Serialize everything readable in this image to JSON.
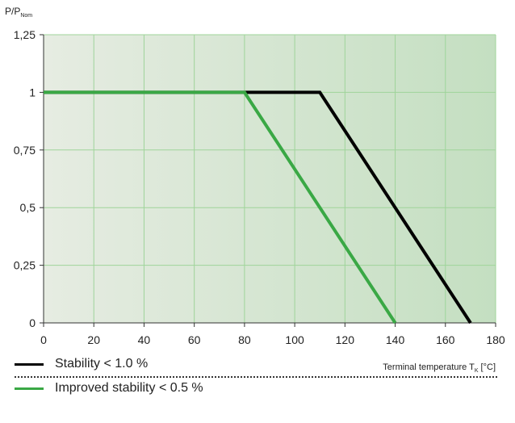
{
  "chart_data": {
    "type": "line",
    "title": "",
    "ylabel": {
      "main": "P/P",
      "sub": "Nom"
    },
    "xlabel": {
      "main": "Terminal temperature T",
      "sub": "K",
      "unit": " [°C]"
    },
    "xlim": [
      0,
      180
    ],
    "ylim": [
      0,
      1.25
    ],
    "x_ticks": [
      {
        "value": 0,
        "label": "0"
      },
      {
        "value": 20,
        "label": "20"
      },
      {
        "value": 40,
        "label": "40"
      },
      {
        "value": 60,
        "label": "60"
      },
      {
        "value": 80,
        "label": "80"
      },
      {
        "value": 100,
        "label": "100"
      },
      {
        "value": 120,
        "label": "120"
      },
      {
        "value": 140,
        "label": "140"
      },
      {
        "value": 160,
        "label": "160"
      },
      {
        "value": 180,
        "label": "180"
      }
    ],
    "y_ticks": [
      {
        "value": 0,
        "label": "0"
      },
      {
        "value": 0.25,
        "label": "0,25"
      },
      {
        "value": 0.5,
        "label": "0,5"
      },
      {
        "value": 0.75,
        "label": "0,75"
      },
      {
        "value": 1,
        "label": "1"
      },
      {
        "value": 1.25,
        "label": "1,25"
      }
    ],
    "grid": true,
    "legend_position": "bottom",
    "background": {
      "gradient_from": "#e6ece2",
      "gradient_to": "#c4dfc1",
      "grid_color": "#9fd49a"
    },
    "series": [
      {
        "name": "Stability < 1.0 %",
        "color": "#000000",
        "points": [
          [
            0,
            1
          ],
          [
            110,
            1
          ],
          [
            170,
            0
          ]
        ]
      },
      {
        "name": "Improved stability < 0.5 %",
        "color": "#3aa845",
        "points": [
          [
            0,
            1
          ],
          [
            80,
            1
          ],
          [
            140,
            0
          ]
        ]
      }
    ]
  }
}
